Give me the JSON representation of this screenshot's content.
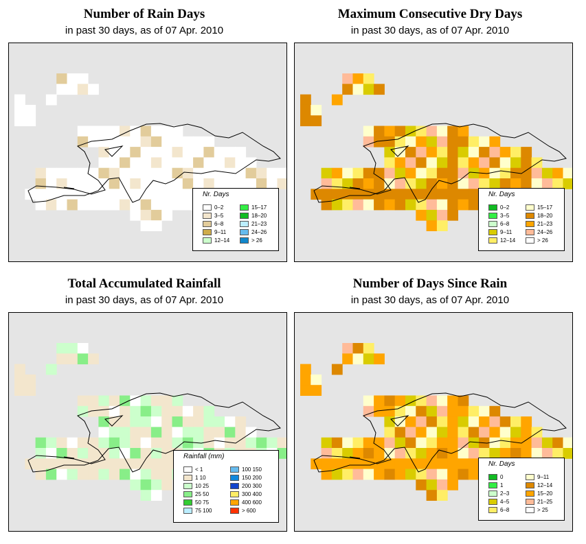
{
  "panels": [
    {
      "id": "rain-days",
      "title": "Number of Rain Days",
      "subtitle": "in past 30 days, as of  07 Apr. 2010",
      "legend": {
        "title": "Nr. Days",
        "items": [
          {
            "label": "0–2",
            "color": "#ffffff"
          },
          {
            "label": "3–5",
            "color": "#f3e6cd"
          },
          {
            "label": "6–8",
            "color": "#e2cc9b"
          },
          {
            "label": "9–11",
            "color": "#cfac4b"
          },
          {
            "label": "12–14",
            "color": "#ccffcc"
          },
          {
            "label": "15–17",
            "color": "#33ee44"
          },
          {
            "label": "18–20",
            "color": "#11bb22"
          },
          {
            "label": "21–23",
            "color": "#bbeeff"
          },
          {
            "label": "24–26",
            "color": "#66bbee"
          },
          {
            "label": "> 26",
            "color": "#1188cc"
          }
        ]
      }
    },
    {
      "id": "max-dry-days",
      "title": "Maximum Consecutive Dry Days",
      "subtitle": "in past 30 days, as of  07 Apr. 2010",
      "legend": {
        "title": "Nr. Days",
        "items": [
          {
            "label": "0–2",
            "color": "#11bb22"
          },
          {
            "label": "3–5",
            "color": "#33ee44"
          },
          {
            "label": "6–8",
            "color": "#ccffcc"
          },
          {
            "label": "9–11",
            "color": "#d9cc00"
          },
          {
            "label": "12–14",
            "color": "#ffee66"
          },
          {
            "label": "15–17",
            "color": "#ffffcc"
          },
          {
            "label": "18–20",
            "color": "#dd8800"
          },
          {
            "label": "21–23",
            "color": "#ffa500"
          },
          {
            "label": "24–26",
            "color": "#ffbb99"
          },
          {
            "label": "> 26",
            "color": "#ffffff"
          }
        ]
      }
    },
    {
      "id": "total-rainfall",
      "title": "Total Accumulated Rainfall",
      "subtitle": "in past 30 days, as of  07 Apr. 2010",
      "legend": {
        "title": "Rainfall (mm)",
        "items": [
          {
            "label": "< 1",
            "color": "#ffffff"
          },
          {
            "label": "1  10",
            "color": "#f3e6cd"
          },
          {
            "label": "10  25",
            "color": "#ccffcc"
          },
          {
            "label": "25  50",
            "color": "#88ee88"
          },
          {
            "label": "50  75",
            "color": "#33cc33"
          },
          {
            "label": "75  100",
            "color": "#bbeeff"
          },
          {
            "label": "100  150",
            "color": "#66bbee"
          },
          {
            "label": "150  200",
            "color": "#1188dd"
          },
          {
            "label": "200  300",
            "color": "#1144cc"
          },
          {
            "label": "300  400",
            "color": "#ffee66"
          },
          {
            "label": "400  600",
            "color": "#ffa500"
          },
          {
            "label": "> 600",
            "color": "#ff3300"
          }
        ]
      }
    },
    {
      "id": "days-since-rain",
      "title": "Number of Days Since Rain",
      "subtitle": "in past 30 days, as of  07 Apr. 2010",
      "legend": {
        "title": "Nr. Days",
        "items": [
          {
            "label": "0",
            "color": "#11bb22"
          },
          {
            "label": "1",
            "color": "#33ee44"
          },
          {
            "label": "2–3",
            "color": "#ccffcc"
          },
          {
            "label": "4–5",
            "color": "#d9cc00"
          },
          {
            "label": "6–8",
            "color": "#ffee66"
          },
          {
            "label": "9–11",
            "color": "#ffffcc"
          },
          {
            "label": "12–14",
            "color": "#dd8800"
          },
          {
            "label": "15–20",
            "color": "#ffa500"
          },
          {
            "label": "21–25",
            "color": "#ffbb99"
          },
          {
            "label": "> 25",
            "color": "#ffffff"
          }
        ]
      }
    }
  ]
}
